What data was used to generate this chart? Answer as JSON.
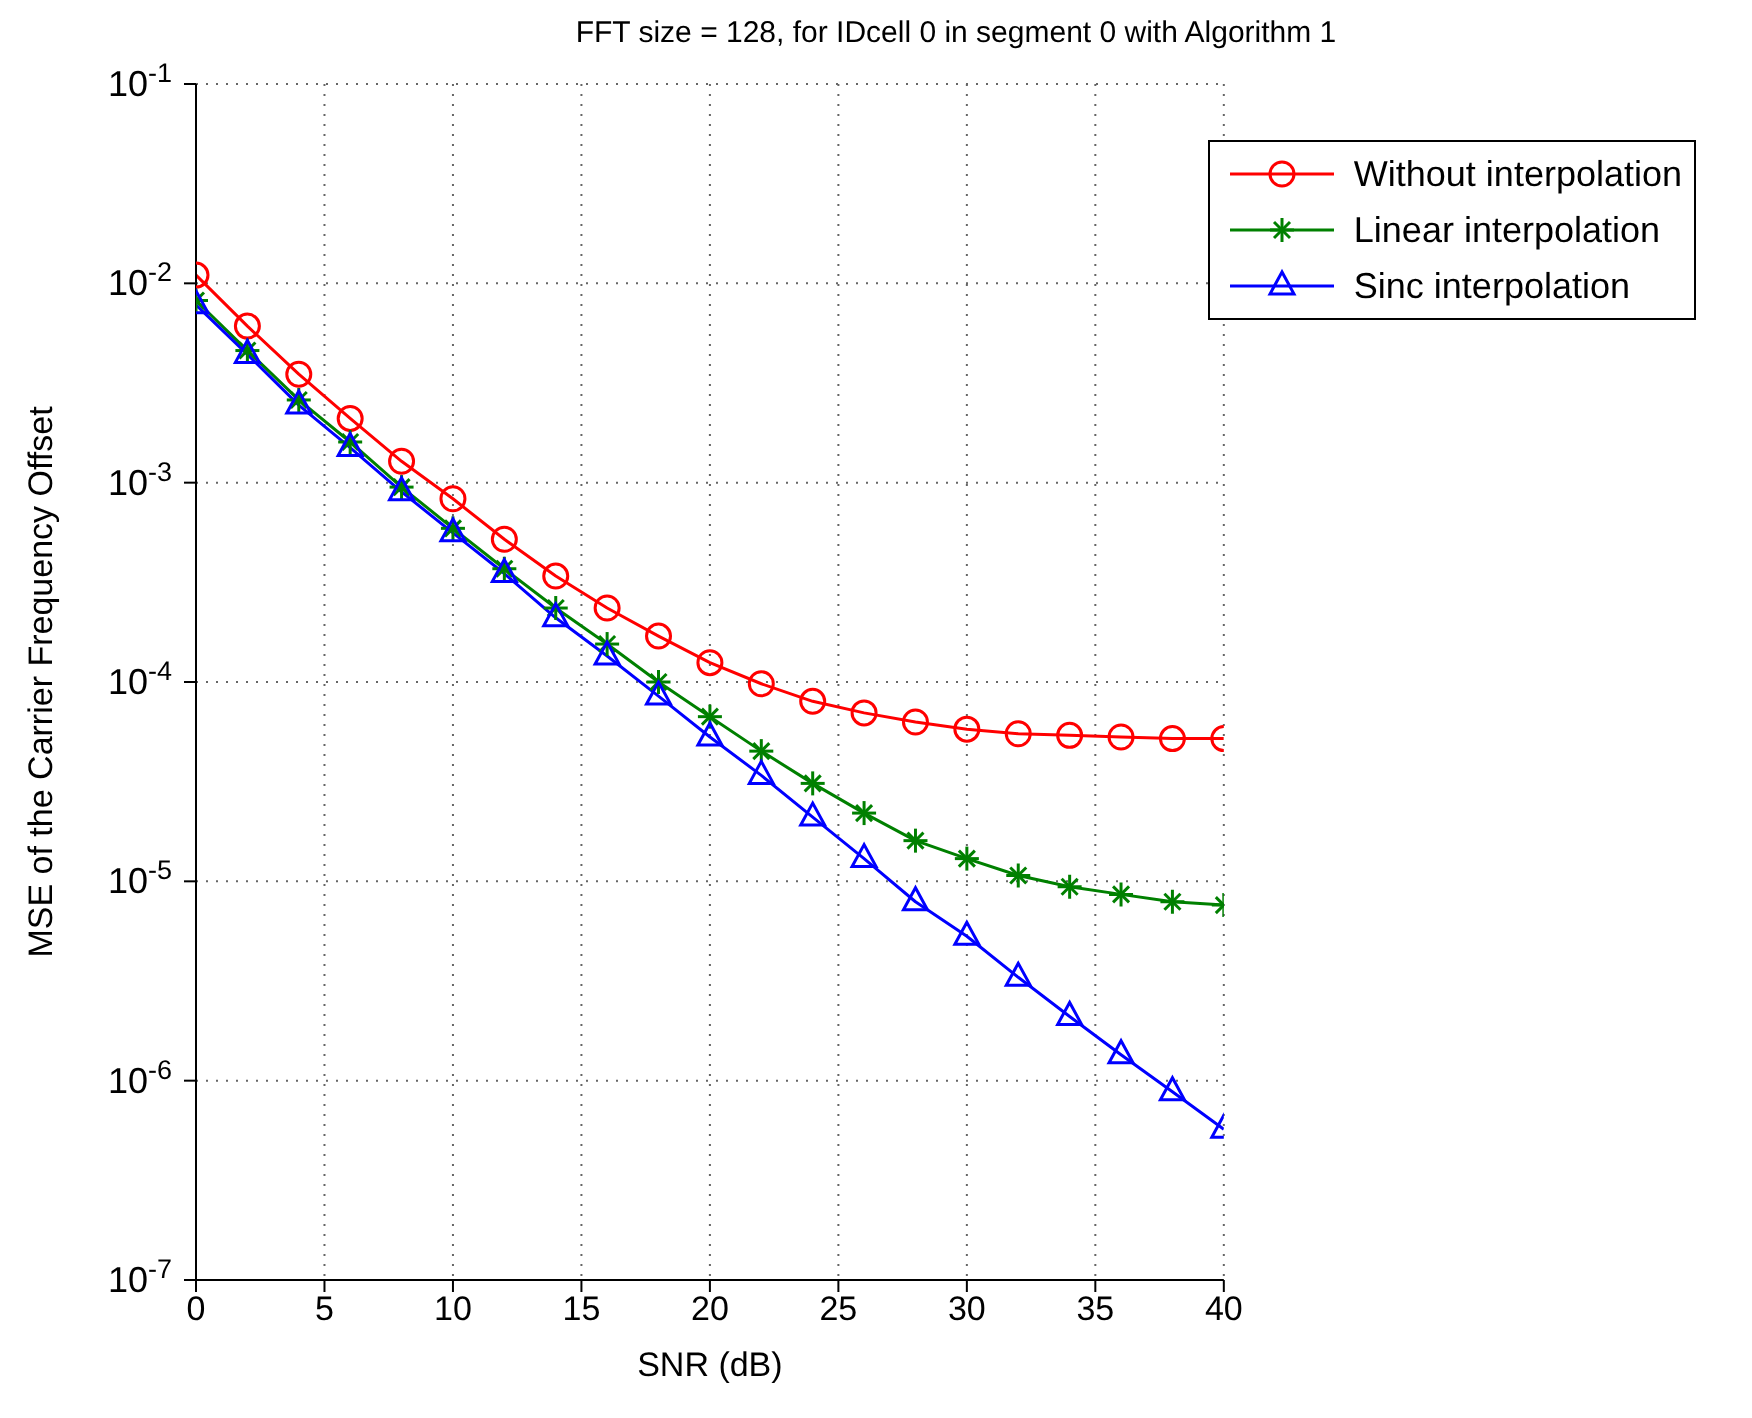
{
  "chart_data": {
    "type": "line",
    "title": "FFT size = 128, for IDcell 0 in segment 0 with Algorithm 1",
    "xlabel": "SNR (dB)",
    "ylabel": "MSE of the Carrier Frequency Offset",
    "x": [
      0,
      2,
      4,
      6,
      8,
      10,
      12,
      14,
      16,
      18,
      20,
      22,
      24,
      26,
      28,
      30,
      32,
      34,
      36,
      38,
      40
    ],
    "series": [
      {
        "name": "Without interpolation",
        "color": "#ff0000",
        "marker": "circle",
        "values": [
          0.011,
          0.0061,
          0.0035,
          0.0021,
          0.00128,
          0.00083,
          0.00052,
          0.00034,
          0.000235,
          0.00017,
          0.000125,
          9.8e-05,
          8e-05,
          7e-05,
          6.3e-05,
          5.8e-05,
          5.5e-05,
          5.4e-05,
          5.3e-05,
          5.2e-05,
          5.2e-05
        ]
      },
      {
        "name": "Linear interpolation",
        "color": "#008000",
        "marker": "cross",
        "values": [
          0.0082,
          0.0046,
          0.0026,
          0.0016,
          0.00095,
          0.00059,
          0.00037,
          0.000235,
          0.000155,
          0.0001,
          6.7e-05,
          4.5e-05,
          3.1e-05,
          2.2e-05,
          1.6e-05,
          1.3e-05,
          1.07e-05,
          9.4e-06,
          8.6e-06,
          7.9e-06,
          7.6e-06
        ]
      },
      {
        "name": "Sinc interpolation",
        "color": "#0000ff",
        "marker": "triangle",
        "values": [
          0.0078,
          0.0044,
          0.00245,
          0.0015,
          0.0009,
          0.00056,
          0.00035,
          0.00021,
          0.000135,
          8.5e-05,
          5.3e-05,
          3.4e-05,
          2.1e-05,
          1.3e-05,
          7.9e-06,
          5.3e-06,
          3.3e-06,
          2.1e-06,
          1.35e-06,
          8.8e-07,
          5.7e-07
        ]
      }
    ],
    "log": "y",
    "xlim": [
      0,
      40
    ],
    "xticks": [
      0,
      5,
      10,
      15,
      20,
      25,
      30,
      35,
      40
    ],
    "ylim": [
      1e-07,
      0.1
    ],
    "yticks": [
      {
        "value": 1e-07,
        "label": "10$^{-7}$"
      },
      {
        "value": 1e-06,
        "label": "10$^{-6}$"
      },
      {
        "value": 1e-05,
        "label": "10$^{-5}$"
      },
      {
        "value": 0.0001,
        "label": "10$^{-4}$"
      },
      {
        "value": 0.001,
        "label": "10$^{-3}$"
      },
      {
        "value": 0.01,
        "label": "10$^{-2}$"
      },
      {
        "value": 0.1,
        "label": "10$^{-1}$"
      }
    ],
    "grid": true,
    "legend": "top right",
    "line_style": "solid"
  }
}
